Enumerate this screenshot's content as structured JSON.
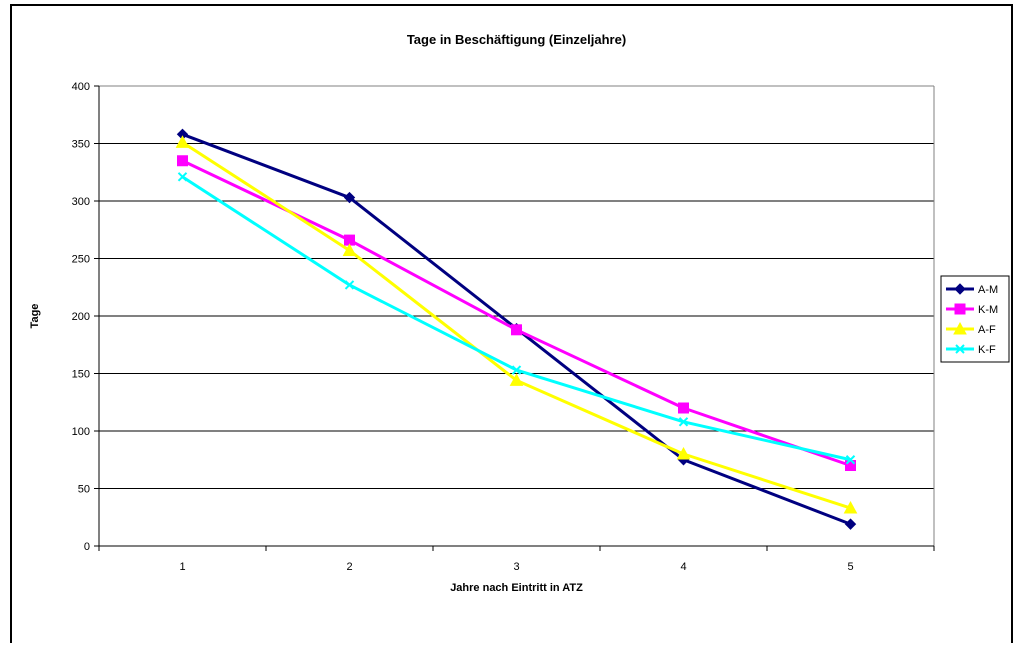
{
  "chart_data": {
    "type": "line",
    "title": "Tage in Beschäftigung (Einzeljahre)",
    "xlabel": "Jahre nach Eintritt in ATZ",
    "ylabel": "Tage",
    "categories": [
      "1",
      "2",
      "3",
      "4",
      "5"
    ],
    "ylim": [
      0,
      400
    ],
    "yticks": [
      0,
      50,
      100,
      150,
      200,
      250,
      300,
      350,
      400
    ],
    "grid": true,
    "legend_position": "right",
    "series": [
      {
        "name": "A-M",
        "color": "#000080",
        "marker": "diamond",
        "values": [
          358,
          303,
          189,
          75,
          19
        ]
      },
      {
        "name": "K-M",
        "color": "#ff00ff",
        "marker": "square",
        "values": [
          335,
          266,
          188,
          120,
          70
        ]
      },
      {
        "name": "A-F",
        "color": "#ffff00",
        "marker": "triangle",
        "values": [
          351,
          257,
          144,
          80,
          33
        ]
      },
      {
        "name": "K-F",
        "color": "#00ffff",
        "marker": "x",
        "values": [
          321,
          227,
          153,
          108,
          75
        ]
      }
    ]
  }
}
